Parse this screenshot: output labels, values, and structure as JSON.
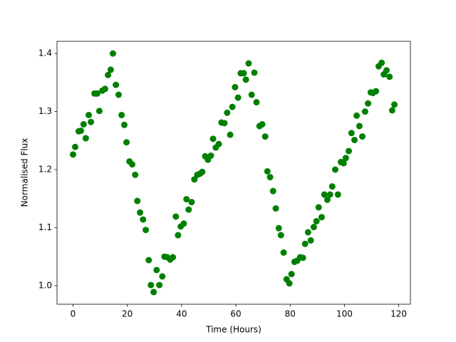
{
  "chart_data": {
    "type": "scatter",
    "x_label": "Time (Hours)",
    "y_label": "Normalised Flux",
    "color": "#008000",
    "x": [
      0.0,
      0.8,
      2.1,
      2.9,
      3.9,
      4.7,
      5.8,
      6.6,
      7.9,
      8.9,
      9.7,
      10.8,
      11.8,
      12.9,
      13.9,
      14.7,
      15.8,
      16.8,
      17.9,
      18.9,
      19.7,
      20.8,
      21.8,
      22.9,
      23.7,
      24.7,
      25.8,
      26.8,
      27.9,
      28.7,
      29.7,
      30.8,
      31.8,
      32.9,
      33.7,
      34.7,
      35.8,
      36.8,
      37.9,
      38.7,
      39.7,
      40.8,
      41.8,
      42.6,
      43.7,
      44.7,
      45.8,
      46.8,
      47.6,
      48.7,
      49.7,
      50.8,
      51.6,
      52.6,
      53.7,
      54.7,
      55.8,
      56.8,
      57.9,
      58.7,
      59.7,
      60.8,
      61.8,
      62.9,
      63.7,
      64.7,
      65.8,
      66.8,
      67.6,
      68.7,
      69.7,
      70.8,
      71.6,
      72.6,
      73.7,
      74.7,
      75.8,
      76.6,
      77.6,
      78.7,
      79.7,
      80.5,
      81.6,
      82.6,
      83.7,
      84.7,
      85.5,
      86.6,
      87.6,
      88.7,
      89.7,
      90.5,
      91.6,
      92.6,
      93.7,
      94.7,
      95.5,
      96.6,
      97.6,
      98.7,
      99.7,
      100.5,
      101.6,
      102.6,
      103.7,
      104.5,
      105.5,
      106.6,
      107.6,
      108.7,
      109.7,
      110.5,
      111.6,
      112.6,
      113.7,
      114.5,
      115.5,
      116.6,
      117.6,
      118.4
    ],
    "values": [
      1.226,
      1.239,
      1.266,
      1.267,
      1.278,
      1.254,
      1.294,
      1.282,
      1.331,
      1.331,
      1.301,
      1.336,
      1.339,
      1.363,
      1.372,
      1.4,
      1.346,
      1.329,
      1.294,
      1.277,
      1.247,
      1.214,
      1.209,
      1.191,
      1.146,
      1.126,
      1.114,
      1.096,
      1.044,
      1.001,
      0.989,
      1.027,
      1.001,
      1.016,
      1.05,
      1.049,
      1.045,
      1.049,
      1.119,
      1.087,
      1.102,
      1.107,
      1.149,
      1.131,
      1.144,
      1.183,
      1.191,
      1.193,
      1.196,
      1.223,
      1.217,
      1.224,
      1.253,
      1.238,
      1.244,
      1.281,
      1.28,
      1.298,
      1.26,
      1.308,
      1.342,
      1.324,
      1.366,
      1.366,
      1.355,
      1.383,
      1.329,
      1.367,
      1.316,
      1.275,
      1.278,
      1.257,
      1.197,
      1.187,
      1.163,
      1.133,
      1.099,
      1.087,
      1.057,
      1.011,
      1.004,
      1.02,
      1.041,
      1.043,
      1.049,
      1.048,
      1.072,
      1.092,
      1.078,
      1.101,
      1.111,
      1.135,
      1.118,
      1.157,
      1.148,
      1.157,
      1.171,
      1.2,
      1.157,
      1.213,
      1.211,
      1.22,
      1.232,
      1.263,
      1.251,
      1.293,
      1.275,
      1.257,
      1.3,
      1.314,
      1.333,
      1.332,
      1.335,
      1.378,
      1.384,
      1.364,
      1.371,
      1.36,
      1.302,
      1.312
    ],
    "xlim": [
      -5.9,
      124.3
    ],
    "xticks": [
      0,
      20,
      40,
      60,
      80,
      100,
      120
    ],
    "ylim": [
      0.968,
      1.421
    ],
    "yticks": [
      {
        "value": 1,
        "label": "1.0"
      },
      1.1,
      1.2,
      1.3,
      1.4
    ]
  }
}
